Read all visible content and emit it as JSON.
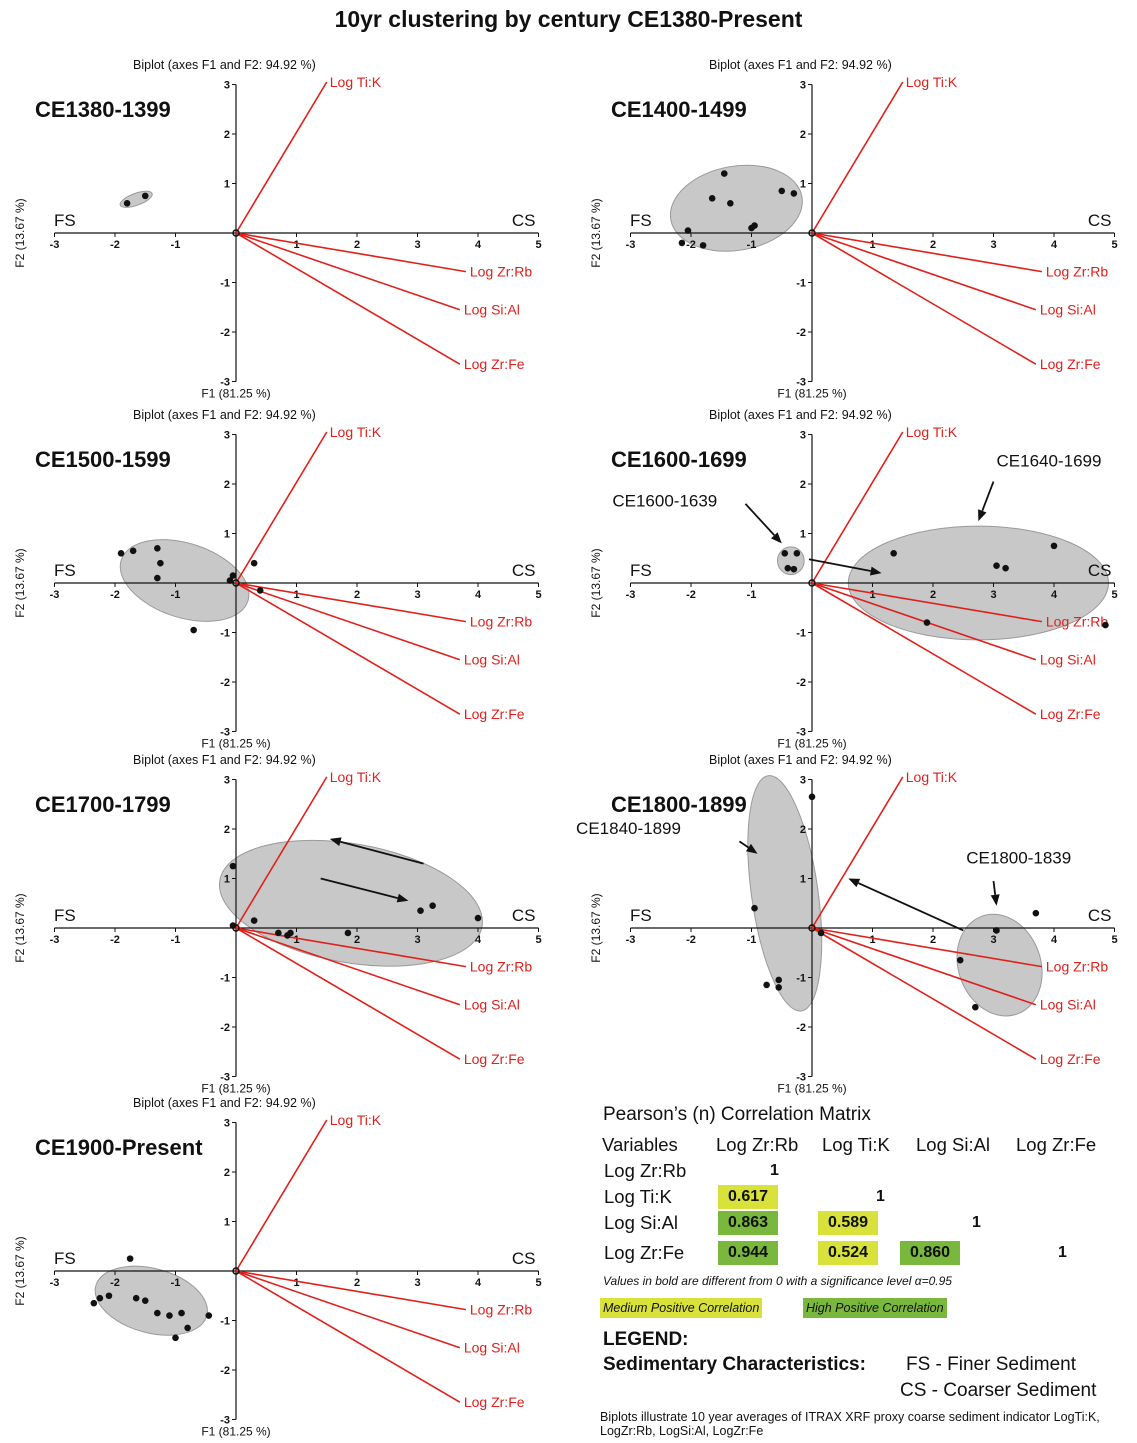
{
  "title": "10yr clustering by century CE1380-Present",
  "colors": {
    "vector": "#e0201b",
    "ellipse_fill": "#c8c8c8",
    "ellipse_stroke": "#9a9a9a",
    "medium": "#d8e23a",
    "high": "#79b83c"
  },
  "common": {
    "biplot_label": "Biplot (axes F1 and F2:  94.92 %)",
    "xlabel": "F1 (81.25 %)",
    "ylabel": "F2 (13.67 %)",
    "left_label": "FS",
    "right_label": "CS"
  },
  "chart_data": [
    {
      "type": "scatter",
      "title": "CE1380-1399",
      "xlim": [
        -3,
        5
      ],
      "ylim": [
        -3,
        3
      ],
      "xticks": [
        -3,
        -2,
        -1,
        1,
        2,
        3,
        4,
        5
      ],
      "yticks": [
        -3,
        -2,
        -1,
        1,
        2,
        3
      ],
      "vectors": [
        {
          "name": "Log Ti:K",
          "x": 1.5,
          "y": 3.05
        },
        {
          "name": "Log Zr:Rb",
          "x": 3.8,
          "y": -0.78
        },
        {
          "name": "Log Si:Al",
          "x": 3.7,
          "y": -1.55
        },
        {
          "name": "Log Zr:Fe",
          "x": 3.7,
          "y": -2.65
        }
      ],
      "points": [
        [
          -1.8,
          0.6
        ],
        [
          -1.5,
          0.75
        ],
        [
          0,
          0
        ]
      ],
      "clusters": [
        {
          "cx": -1.65,
          "cy": 0.68,
          "rx": 0.28,
          "ry": 0.12,
          "angle": 20
        }
      ],
      "annotations": [],
      "arrows": []
    },
    {
      "type": "scatter",
      "title": "CE1400-1499",
      "xlim": [
        -3,
        5
      ],
      "ylim": [
        -3,
        3
      ],
      "xticks": [
        -3,
        -2,
        -1,
        1,
        2,
        3,
        4,
        5
      ],
      "yticks": [
        -3,
        -2,
        -1,
        1,
        2,
        3
      ],
      "vectors": [
        {
          "name": "Log Ti:K",
          "x": 1.5,
          "y": 3.05
        },
        {
          "name": "Log Zr:Rb",
          "x": 3.8,
          "y": -0.78
        },
        {
          "name": "Log Si:Al",
          "x": 3.7,
          "y": -1.55
        },
        {
          "name": "Log Zr:Fe",
          "x": 3.7,
          "y": -2.65
        }
      ],
      "points": [
        [
          -2.05,
          0.05
        ],
        [
          -2.15,
          -0.2
        ],
        [
          -1.8,
          -0.25
        ],
        [
          -1.65,
          0.7
        ],
        [
          -1.45,
          1.2
        ],
        [
          -1.35,
          0.6
        ],
        [
          -1.0,
          0.1
        ],
        [
          -0.95,
          0.15
        ],
        [
          -0.5,
          0.85
        ],
        [
          -0.3,
          0.8
        ],
        [
          0,
          0
        ]
      ],
      "clusters": [
        {
          "cx": -1.25,
          "cy": 0.5,
          "rx": 1.1,
          "ry": 0.85,
          "angle": 10
        }
      ],
      "annotations": [],
      "arrows": []
    },
    {
      "type": "scatter",
      "title": "CE1500-1599",
      "xlim": [
        -3,
        5
      ],
      "ylim": [
        -3,
        3
      ],
      "xticks": [
        -3,
        -2,
        -1,
        1,
        2,
        3,
        4,
        5
      ],
      "yticks": [
        -3,
        -2,
        -1,
        1,
        2,
        3
      ],
      "vectors": [
        {
          "name": "Log Ti:K",
          "x": 1.5,
          "y": 3.05
        },
        {
          "name": "Log Zr:Rb",
          "x": 3.8,
          "y": -0.78
        },
        {
          "name": "Log Si:Al",
          "x": 3.7,
          "y": -1.55
        },
        {
          "name": "Log Zr:Fe",
          "x": 3.7,
          "y": -2.65
        }
      ],
      "points": [
        [
          -1.9,
          0.6
        ],
        [
          -1.7,
          0.65
        ],
        [
          -1.3,
          0.7
        ],
        [
          -1.25,
          0.4
        ],
        [
          -1.3,
          0.1
        ],
        [
          -0.7,
          -0.95
        ],
        [
          -0.1,
          0.05
        ],
        [
          -0.05,
          0.15
        ],
        [
          0.3,
          0.4
        ],
        [
          0.4,
          -0.15
        ],
        [
          0,
          0
        ]
      ],
      "clusters": [
        {
          "cx": -0.85,
          "cy": 0.05,
          "rx": 1.1,
          "ry": 0.75,
          "angle": -18
        }
      ],
      "annotations": [],
      "arrows": []
    },
    {
      "type": "scatter",
      "title": "CE1600-1699",
      "xlim": [
        -3,
        5
      ],
      "ylim": [
        -3,
        3
      ],
      "xticks": [
        -3,
        -2,
        -1,
        1,
        2,
        3,
        4,
        5
      ],
      "yticks": [
        -3,
        -2,
        -1,
        1,
        2,
        3
      ],
      "vectors": [
        {
          "name": "Log Ti:K",
          "x": 1.5,
          "y": 3.05
        },
        {
          "name": "Log Zr:Rb",
          "x": 3.8,
          "y": -0.78
        },
        {
          "name": "Log Si:Al",
          "x": 3.7,
          "y": -1.55
        },
        {
          "name": "Log Zr:Fe",
          "x": 3.7,
          "y": -2.65
        }
      ],
      "points": [
        [
          -0.45,
          0.6
        ],
        [
          -0.4,
          0.3
        ],
        [
          -0.3,
          0.28
        ],
        [
          -0.25,
          0.6
        ],
        [
          1.35,
          0.6
        ],
        [
          1.9,
          -0.8
        ],
        [
          3.05,
          0.35
        ],
        [
          3.2,
          0.3
        ],
        [
          4.0,
          0.75
        ],
        [
          4.85,
          -0.85
        ],
        [
          0,
          0
        ]
      ],
      "clusters": [
        {
          "cx": -0.35,
          "cy": 0.45,
          "rx": 0.22,
          "ry": 0.28,
          "angle": 0
        },
        {
          "cx": 2.75,
          "cy": 0.0,
          "rx": 2.15,
          "ry": 1.15,
          "angle": 0
        }
      ],
      "annotations": [
        {
          "text": "CE1600-1639",
          "x": -3.3,
          "y": 1.55
        },
        {
          "text": "CE1640-1699",
          "x": 3.05,
          "y": 2.35
        }
      ],
      "arrows": [
        {
          "x1": -1.1,
          "y1": 1.6,
          "x2": -0.5,
          "y2": 0.8
        },
        {
          "x1": 3.0,
          "y1": 2.05,
          "x2": 2.75,
          "y2": 1.25
        },
        {
          "x1": -0.05,
          "y1": 0.48,
          "x2": 1.15,
          "y2": 0.2
        }
      ]
    },
    {
      "type": "scatter",
      "title": "CE1700-1799",
      "xlim": [
        -3,
        5
      ],
      "ylim": [
        -3,
        3
      ],
      "xticks": [
        -3,
        -2,
        -1,
        1,
        2,
        3,
        4,
        5
      ],
      "yticks": [
        -3,
        -2,
        -1,
        1,
        2,
        3
      ],
      "vectors": [
        {
          "name": "Log Ti:K",
          "x": 1.5,
          "y": 3.05
        },
        {
          "name": "Log Zr:Rb",
          "x": 3.8,
          "y": -0.78
        },
        {
          "name": "Log Si:Al",
          "x": 3.7,
          "y": -1.55
        },
        {
          "name": "Log Zr:Fe",
          "x": 3.7,
          "y": -2.65
        }
      ],
      "points": [
        [
          -0.05,
          1.25
        ],
        [
          -0.05,
          0.05
        ],
        [
          0.3,
          0.15
        ],
        [
          0.7,
          -0.1
        ],
        [
          0.85,
          -0.15
        ],
        [
          0.9,
          -0.1
        ],
        [
          1.85,
          -0.1
        ],
        [
          3.05,
          0.35
        ],
        [
          3.25,
          0.45
        ],
        [
          4.0,
          0.2
        ],
        [
          0,
          0
        ]
      ],
      "clusters": [
        {
          "cx": 1.9,
          "cy": 0.5,
          "rx": 2.2,
          "ry": 1.2,
          "angle": -10
        }
      ],
      "annotations": [],
      "arrows": [
        {
          "x1": 3.1,
          "y1": 1.3,
          "x2": 1.55,
          "y2": 1.8
        },
        {
          "x1": 1.4,
          "y1": 1.0,
          "x2": 2.85,
          "y2": 0.55
        }
      ]
    },
    {
      "type": "scatter",
      "title": "CE1800-1899",
      "xlim": [
        -3,
        5
      ],
      "ylim": [
        -3,
        3
      ],
      "xticks": [
        -3,
        -2,
        -1,
        1,
        2,
        3,
        4,
        5
      ],
      "yticks": [
        -3,
        -2,
        -1,
        1,
        2,
        3
      ],
      "vectors": [
        {
          "name": "Log Ti:K",
          "x": 1.5,
          "y": 3.05
        },
        {
          "name": "Log Zr:Rb",
          "x": 3.8,
          "y": -0.78
        },
        {
          "name": "Log Si:Al",
          "x": 3.7,
          "y": -1.55
        },
        {
          "name": "Log Zr:Fe",
          "x": 3.7,
          "y": -2.65
        }
      ],
      "points": [
        [
          -0.95,
          0.4
        ],
        [
          -0.75,
          -1.15
        ],
        [
          -0.55,
          -1.2
        ],
        [
          -0.55,
          -1.05
        ],
        [
          0.0,
          2.65
        ],
        [
          0.15,
          -0.1
        ],
        [
          2.45,
          -0.65
        ],
        [
          2.7,
          -1.6
        ],
        [
          3.05,
          -0.05
        ],
        [
          3.7,
          0.3
        ],
        [
          0,
          0
        ]
      ],
      "clusters": [
        {
          "cx": -0.45,
          "cy": 0.7,
          "rx": 0.55,
          "ry": 2.4,
          "angle": 8
        },
        {
          "cx": 3.1,
          "cy": -0.75,
          "rx": 0.68,
          "ry": 1.05,
          "angle": 20
        }
      ],
      "annotations": [
        {
          "text": "CE1840-1899",
          "x": -3.9,
          "y": 1.9
        },
        {
          "text": "CE1800-1839",
          "x": 2.55,
          "y": 1.3
        }
      ],
      "arrows": [
        {
          "x1": -1.2,
          "y1": 1.75,
          "x2": -0.9,
          "y2": 1.5
        },
        {
          "x1": 3.0,
          "y1": 0.95,
          "x2": 3.05,
          "y2": 0.45
        },
        {
          "x1": 2.5,
          "y1": -0.05,
          "x2": 0.6,
          "y2": 1.0
        }
      ]
    },
    {
      "type": "scatter",
      "title": "CE1900-Present",
      "xlim": [
        -3,
        5
      ],
      "ylim": [
        -3,
        3
      ],
      "xticks": [
        -3,
        -2,
        -1,
        1,
        2,
        3,
        4,
        5
      ],
      "yticks": [
        -3,
        -2,
        -1,
        1,
        2,
        3
      ],
      "vectors": [
        {
          "name": "Log Ti:K",
          "x": 1.5,
          "y": 3.05
        },
        {
          "name": "Log Zr:Rb",
          "x": 3.8,
          "y": -0.78
        },
        {
          "name": "Log Si:Al",
          "x": 3.7,
          "y": -1.55
        },
        {
          "name": "Log Zr:Fe",
          "x": 3.7,
          "y": -2.65
        }
      ],
      "points": [
        [
          -2.35,
          -0.65
        ],
        [
          -2.25,
          -0.55
        ],
        [
          -2.1,
          -0.5
        ],
        [
          -1.75,
          0.25
        ],
        [
          -1.65,
          -0.55
        ],
        [
          -1.5,
          -0.6
        ],
        [
          -1.3,
          -0.85
        ],
        [
          -1.1,
          -0.9
        ],
        [
          -0.9,
          -0.85
        ],
        [
          -1.0,
          -1.35
        ],
        [
          -0.8,
          -1.15
        ],
        [
          -0.45,
          -0.9
        ],
        [
          0,
          0
        ]
      ],
      "clusters": [
        {
          "cx": -1.4,
          "cy": -0.6,
          "rx": 0.95,
          "ry": 0.65,
          "angle": -15
        }
      ],
      "annotations": [],
      "arrows": []
    }
  ],
  "correlation": {
    "title": "Pearson’s (n) Correlation Matrix",
    "header": "Variables",
    "variables": [
      "Log Zr:Rb",
      "Log Ti:K",
      "Log Si:Al",
      "Log Zr:Fe"
    ],
    "rows": [
      [
        "1",
        "",
        "",
        ""
      ],
      [
        "0.617",
        "1",
        "",
        ""
      ],
      [
        "0.863",
        "0.589",
        "1",
        ""
      ],
      [
        "0.944",
        "0.524",
        "0.860",
        "1"
      ]
    ],
    "cell_class": [
      [
        "",
        "",
        "",
        ""
      ],
      [
        "medium",
        "",
        "",
        ""
      ],
      [
        "high",
        "medium",
        "",
        ""
      ],
      [
        "high",
        "medium",
        "high",
        ""
      ]
    ],
    "significance_note": "Values in bold are different from 0 with a significance level α=0.95",
    "medium_label": "Medium Positive Correlation",
    "high_label": "High Positive Correlation"
  },
  "legend": {
    "heading": "LEGEND:",
    "label": "Sedimentary Characteristics:",
    "fs": "FS - Finer Sediment",
    "cs": "CS - Coarser Sediment"
  },
  "footnote": "Biplots illustrate 10 year averages of ITRAX XRF proxy coarse sediment indicator LogTi:K, LogZr:Rb, LogSi:Al, LogZr:Fe"
}
